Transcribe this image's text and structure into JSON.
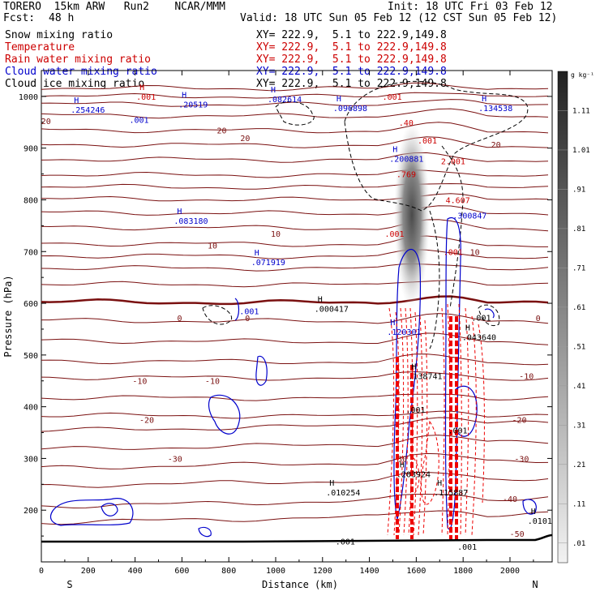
{
  "header": {
    "title_left": "TORERO  15km ARW   Run2    NCAR/MMM",
    "init": "Init: 18 UTC Fri 03 Feb 12",
    "fcst_label": "Fcst:",
    "fcst_value": "48 h",
    "valid": "Valid: 18 UTC Sun 05 Feb 12 (12 CST Sun 05 Feb 12)",
    "fields": [
      {
        "name": "Snow mixing ratio",
        "xy": "XY= 222.9,  5.1 to 222.9,149.8",
        "color": "#000000"
      },
      {
        "name": "Temperature",
        "xy": "XY= 222.9,  5.1 to 222.9,149.8",
        "color": "#cc0000"
      },
      {
        "name": "Rain water mixing ratio",
        "xy": "XY= 222.9,  5.1 to 222.9,149.8",
        "color": "#cc0000"
      },
      {
        "name": "Cloud water mixing ratio",
        "xy": "XY= 222.9,  5.1 to 222.9,149.8",
        "color": "#0000cc"
      },
      {
        "name": "Cloud ice mixing ratio",
        "xy": "XY= 222.9,  5.1 to 222.9,149.8",
        "color": "#000000"
      }
    ]
  },
  "chart_data": {
    "type": "cross-section",
    "xlabel": "Distance (km)",
    "ylabel": "Pressure (hPa)",
    "xlim": [
      0,
      2180
    ],
    "ylim": [
      1050,
      100
    ],
    "x_ticks": [
      0,
      200,
      400,
      600,
      800,
      1000,
      1200,
      1400,
      1600,
      1800,
      2000
    ],
    "x_tick_labels": [
      "0",
      "200",
      "400",
      "600",
      "800",
      "1000",
      "1200",
      "1400",
      "1600",
      "1800",
      "2000"
    ],
    "y_ticks": [
      200,
      300,
      400,
      500,
      600,
      700,
      800,
      900,
      1000
    ],
    "y_tick_labels": [
      "200",
      "300",
      "400",
      "500",
      "600",
      "700",
      "800",
      "900",
      "1000"
    ],
    "end_labels": {
      "left": "S",
      "right": "N"
    },
    "temperature_labels": [
      {
        "x": 2030,
        "p": 155,
        "text": "-50"
      },
      {
        "x": 2000,
        "p": 222,
        "text": "-40"
      },
      {
        "x": 570,
        "p": 300,
        "text": "-30"
      },
      {
        "x": 1530,
        "p": 300,
        "text": "-30"
      },
      {
        "x": 2050,
        "p": 300,
        "text": "-30"
      },
      {
        "x": 450,
        "p": 375,
        "text": "-20"
      },
      {
        "x": 2040,
        "p": 375,
        "text": "-20"
      },
      {
        "x": 420,
        "p": 450,
        "text": "-10"
      },
      {
        "x": 730,
        "p": 450,
        "text": "-10"
      },
      {
        "x": 2070,
        "p": 460,
        "text": "-10"
      },
      {
        "x": 590,
        "p": 572,
        "text": "0"
      },
      {
        "x": 880,
        "p": 572,
        "text": "0"
      },
      {
        "x": 2120,
        "p": 572,
        "text": "0"
      },
      {
        "x": 730,
        "p": 712,
        "text": "10"
      },
      {
        "x": 1000,
        "p": 735,
        "text": "10"
      },
      {
        "x": 1850,
        "p": 700,
        "text": "10"
      },
      {
        "x": 20,
        "p": 953,
        "text": "20"
      },
      {
        "x": 770,
        "p": 935,
        "text": "20"
      },
      {
        "x": 870,
        "p": 920,
        "text": "20"
      },
      {
        "x": 1940,
        "p": 907,
        "text": "20"
      }
    ],
    "extrema_labels": [
      {
        "x": 1290,
        "p": 140,
        "sym": "",
        "text": ".001",
        "color": "#000000"
      },
      {
        "x": 2110,
        "p": 180,
        "sym": "H",
        "text": ".0101",
        "color": "#000000"
      },
      {
        "x": 1250,
        "p": 235,
        "sym": "H",
        "text": ".010254",
        "color": "#000000"
      },
      {
        "x": 1710,
        "p": 235,
        "sym": "H",
        "text": ".115887",
        "color": "#000000"
      },
      {
        "x": 1550,
        "p": 270,
        "sym": "H",
        "text": ".203924",
        "color": "#000000"
      },
      {
        "x": 1810,
        "p": 130,
        "sym": "",
        "text": ".001",
        "color": "#000000"
      },
      {
        "x": 1770,
        "p": 355,
        "sym": "",
        "text": ".001",
        "color": "#000000"
      },
      {
        "x": 1590,
        "p": 395,
        "sym": "",
        "text": ".001",
        "color": "#000000"
      },
      {
        "x": 1600,
        "p": 460,
        "sym": "H",
        "text": ".138741",
        "color": "#000000"
      },
      {
        "x": 1830,
        "p": 535,
        "sym": "H",
        "text": ".043640",
        "color": "#000000"
      },
      {
        "x": 1200,
        "p": 590,
        "sym": "H",
        "text": ".000417",
        "color": "#000000"
      },
      {
        "x": 1870,
        "p": 573,
        "sym": "",
        "text": ".001",
        "color": "#000000"
      },
      {
        "x": 1510,
        "p": 545,
        "sym": "H",
        "text": ".120301",
        "color": "#0000cc"
      },
      {
        "x": 880,
        "p": 585,
        "sym": "",
        "text": ".001",
        "color": "#0000cc"
      },
      {
        "x": 930,
        "p": 680,
        "sym": "H",
        "text": ".071919",
        "color": "#0000cc"
      },
      {
        "x": 600,
        "p": 760,
        "sym": "H",
        "text": ".083180",
        "color": "#0000cc"
      },
      {
        "x": 1790,
        "p": 770,
        "sym": "",
        "text": ".300847",
        "color": "#0000cc"
      },
      {
        "x": 1520,
        "p": 880,
        "sym": "H",
        "text": ".200881",
        "color": "#0000cc"
      },
      {
        "x": 410,
        "p": 955,
        "sym": "",
        "text": ".001",
        "color": "#0000cc"
      },
      {
        "x": 160,
        "p": 975,
        "sym": "H",
        "text": ".254246",
        "color": "#0000cc"
      },
      {
        "x": 620,
        "p": 985,
        "sym": "H",
        "text": ".20519",
        "color": "#0000cc"
      },
      {
        "x": 1000,
        "p": 995,
        "sym": "H",
        "text": ".082614",
        "color": "#0000cc"
      },
      {
        "x": 1280,
        "p": 978,
        "sym": "H",
        "text": ".096898",
        "color": "#0000cc"
      },
      {
        "x": 1900,
        "p": 978,
        "sym": "H",
        "text": ".134538",
        "color": "#0000cc"
      },
      {
        "x": 1750,
        "p": 700,
        "sym": "",
        "text": ".001",
        "color": "#cc0000"
      },
      {
        "x": 1500,
        "p": 735,
        "sym": "",
        "text": ".001",
        "color": "#cc0000"
      },
      {
        "x": 1550,
        "p": 850,
        "sym": "",
        "text": ".769",
        "color": "#cc0000"
      },
      {
        "x": 1760,
        "p": 800,
        "sym": "",
        "text": "4.607",
        "color": "#cc0000"
      },
      {
        "x": 1740,
        "p": 875,
        "sym": "",
        "text": "2.001",
        "color": "#cc0000"
      },
      {
        "x": 1640,
        "p": 915,
        "sym": "",
        "text": ".001",
        "color": "#cc0000"
      },
      {
        "x": 1560,
        "p": 950,
        "sym": "",
        "text": ".40",
        "color": "#cc0000"
      },
      {
        "x": 1490,
        "p": 1000,
        "sym": "",
        "text": ".001",
        "color": "#cc0000"
      },
      {
        "x": 440,
        "p": 1000,
        "sym": "H",
        "text": ".001",
        "color": "#cc0000"
      }
    ],
    "colorbar": {
      "unit": "g kg⁻¹",
      "levels": [
        "1.11",
        "1.01",
        ".91",
        ".81",
        ".71",
        ".61",
        ".51",
        ".41",
        ".31",
        ".21",
        ".11",
        ".01"
      ]
    }
  }
}
